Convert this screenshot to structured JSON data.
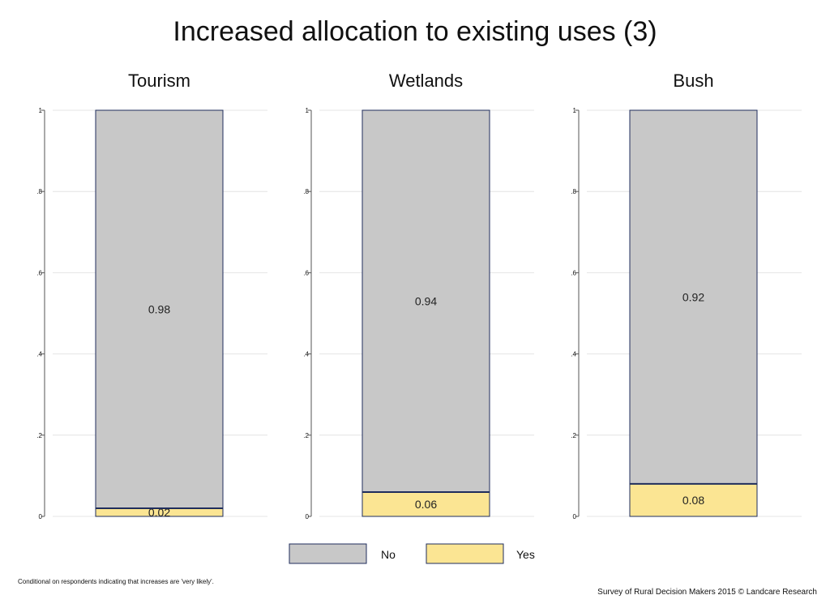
{
  "chart_data": {
    "type": "bar",
    "title": "Increased allocation to existing uses (3)",
    "panels": [
      {
        "name": "Tourism",
        "values": {
          "No": 0.98,
          "Yes": 0.02
        },
        "labels": {
          "No": "0.98",
          "Yes": "0.02"
        }
      },
      {
        "name": "Wetlands",
        "values": {
          "No": 0.94,
          "Yes": 0.06
        },
        "labels": {
          "No": "0.94",
          "Yes": "0.06"
        }
      },
      {
        "name": "Bush",
        "values": {
          "No": 0.92,
          "Yes": 0.08
        },
        "labels": {
          "No": "0.92",
          "Yes": "0.08"
        }
      }
    ],
    "series": [
      {
        "name": "No",
        "color": "#c8c8c8"
      },
      {
        "name": "Yes",
        "color": "#fbe593"
      }
    ],
    "stack_order_bottom_to_top": [
      "Yes",
      "No"
    ],
    "ylim": [
      0,
      1
    ],
    "yticks": [
      0,
      0.2,
      0.4,
      0.6,
      0.8,
      1
    ],
    "ytick_labels": [
      "0",
      ".2",
      ".4",
      ".6",
      ".8",
      "1"
    ],
    "grid": true,
    "legend_position": "bottom-center",
    "bar_outline_color": "#1f2d5c",
    "grid_color": "#e4e4e4"
  },
  "footnote": "Conditional on respondents indicating that increases are 'very likely'.",
  "source": "Survey of Rural Decision Makers 2015 © Landcare Research"
}
